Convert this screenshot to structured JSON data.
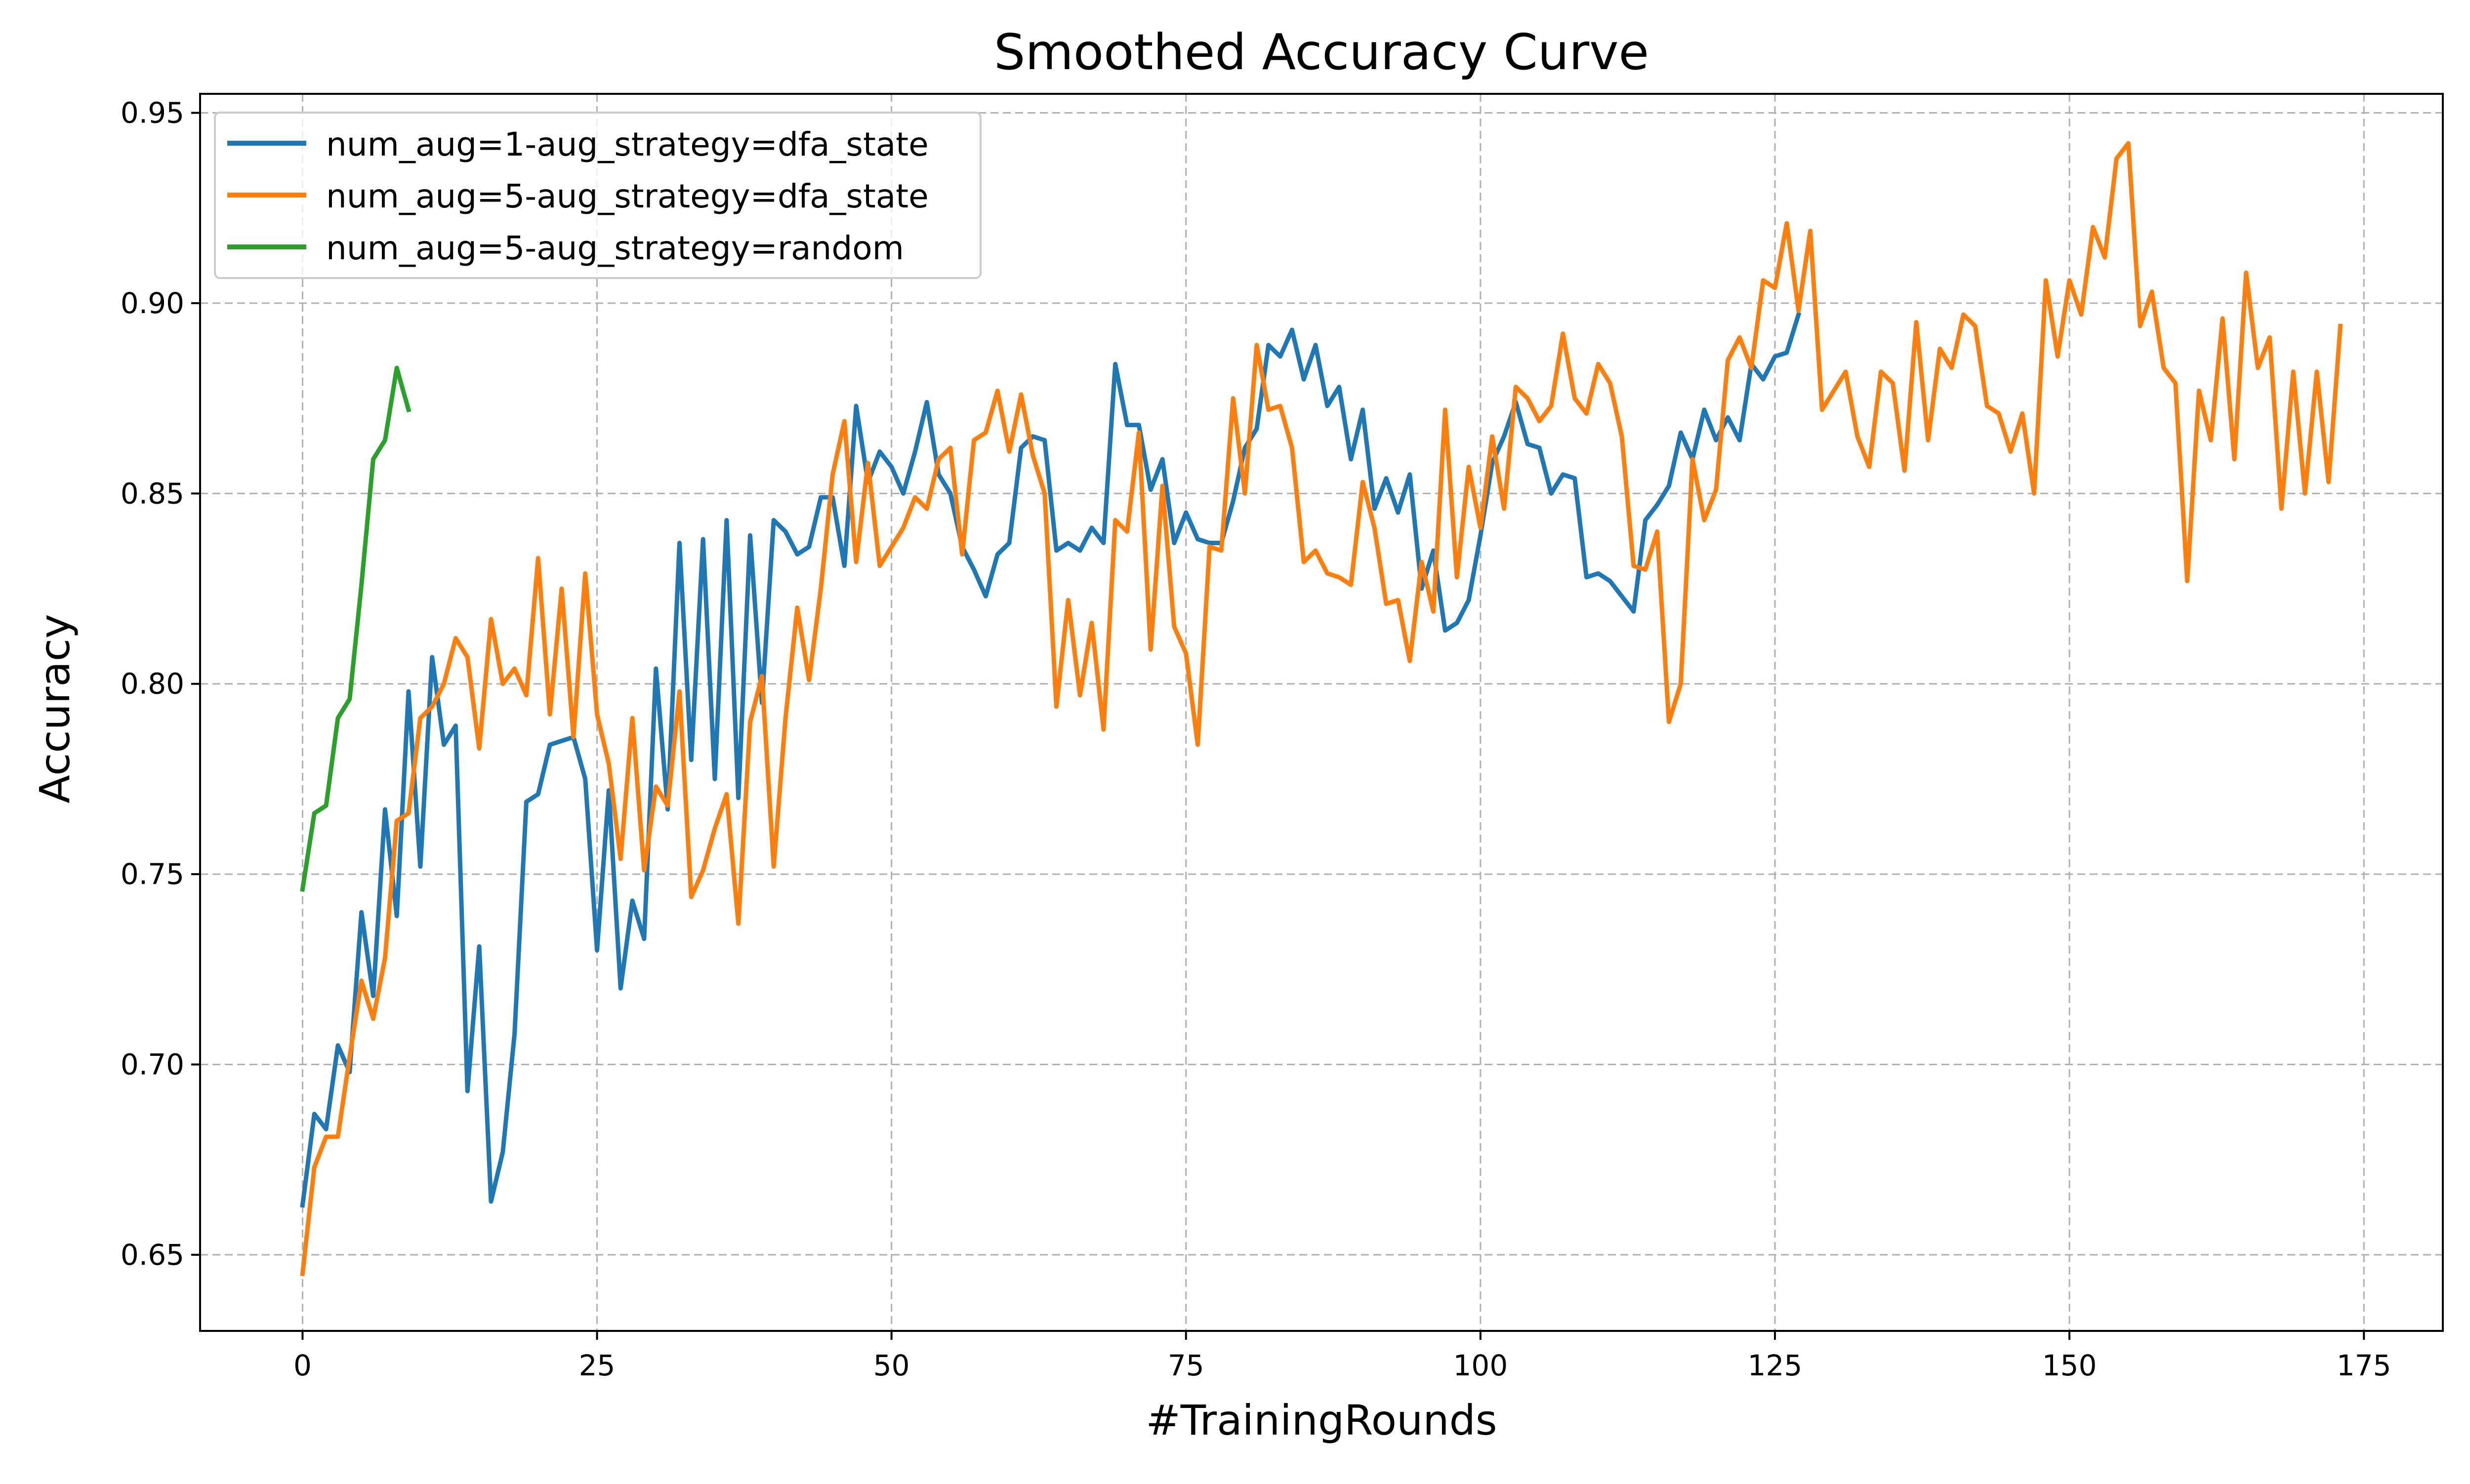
{
  "chart_data": {
    "type": "line",
    "title": "Smoothed Accuracy Curve",
    "xlabel": "#TrainingRounds",
    "ylabel": "Accuracy",
    "xlim": [
      -8.7,
      181.7
    ],
    "ylim": [
      0.63,
      0.955
    ],
    "xticks": [
      0,
      25,
      50,
      75,
      100,
      125,
      150,
      175
    ],
    "yticks": [
      0.65,
      0.7,
      0.75,
      0.8,
      0.85,
      0.9,
      0.95
    ],
    "xtick_labels": [
      "0",
      "25",
      "50",
      "75",
      "100",
      "125",
      "150",
      "175"
    ],
    "ytick_labels": [
      "0.65",
      "0.70",
      "0.75",
      "0.80",
      "0.85",
      "0.90",
      "0.95"
    ],
    "grid": true,
    "legend_position": "top-left",
    "series": [
      {
        "name": "num_aug=1-aug_strategy=dfa_state",
        "color": "#1f77b4",
        "x_start": 0,
        "values": [
          0.663,
          0.687,
          0.683,
          0.705,
          0.698,
          0.74,
          0.718,
          0.767,
          0.739,
          0.798,
          0.752,
          0.807,
          0.784,
          0.789,
          0.693,
          0.731,
          0.664,
          0.677,
          0.708,
          0.769,
          0.771,
          0.784,
          0.785,
          0.786,
          0.775,
          0.73,
          0.772,
          0.72,
          0.743,
          0.733,
          0.804,
          0.767,
          0.837,
          0.78,
          0.838,
          0.775,
          0.843,
          0.77,
          0.839,
          0.795,
          0.843,
          0.84,
          0.834,
          0.836,
          0.849,
          0.849,
          0.831,
          0.873,
          0.853,
          0.861,
          0.857,
          0.85,
          0.861,
          0.874,
          0.855,
          0.85,
          0.836,
          0.83,
          0.823,
          0.834,
          0.837,
          0.862,
          0.865,
          0.864,
          0.835,
          0.837,
          0.835,
          0.841,
          0.837,
          0.884,
          0.868,
          0.868,
          0.851,
          0.859,
          0.837,
          0.845,
          0.838,
          0.837,
          0.837,
          0.848,
          0.862,
          0.867,
          0.889,
          0.886,
          0.893,
          0.88,
          0.889,
          0.873,
          0.878,
          0.859,
          0.872,
          0.846,
          0.854,
          0.845,
          0.855,
          0.825,
          0.835,
          0.814,
          0.816,
          0.822,
          0.839,
          0.858,
          0.865,
          0.874,
          0.863,
          0.862,
          0.85,
          0.855,
          0.854,
          0.828,
          0.829,
          0.827,
          0.823,
          0.819,
          0.843,
          0.847,
          0.852,
          0.866,
          0.859,
          0.872,
          0.864,
          0.87,
          0.864,
          0.884,
          0.88,
          0.886,
          0.887,
          0.897
        ]
      },
      {
        "name": "num_aug=5-aug_strategy=dfa_state",
        "color": "#ff7f0e",
        "x_start": 0,
        "values": [
          0.645,
          0.673,
          0.681,
          0.681,
          0.702,
          0.722,
          0.712,
          0.728,
          0.764,
          0.766,
          0.791,
          0.794,
          0.8,
          0.812,
          0.807,
          0.783,
          0.817,
          0.8,
          0.804,
          0.797,
          0.833,
          0.792,
          0.825,
          0.786,
          0.829,
          0.792,
          0.779,
          0.754,
          0.791,
          0.751,
          0.773,
          0.768,
          0.798,
          0.744,
          0.751,
          0.762,
          0.771,
          0.737,
          0.79,
          0.802,
          0.752,
          0.791,
          0.82,
          0.801,
          0.825,
          0.855,
          0.869,
          0.832,
          0.858,
          0.831,
          0.836,
          0.841,
          0.849,
          0.846,
          0.859,
          0.862,
          0.834,
          0.864,
          0.866,
          0.877,
          0.861,
          0.876,
          0.86,
          0.85,
          0.794,
          0.822,
          0.797,
          0.816,
          0.788,
          0.843,
          0.84,
          0.866,
          0.809,
          0.852,
          0.815,
          0.808,
          0.784,
          0.836,
          0.835,
          0.875,
          0.85,
          0.889,
          0.872,
          0.873,
          0.862,
          0.832,
          0.835,
          0.829,
          0.828,
          0.826,
          0.853,
          0.841,
          0.821,
          0.822,
          0.806,
          0.832,
          0.819,
          0.872,
          0.828,
          0.857,
          0.841,
          0.865,
          0.846,
          0.878,
          0.875,
          0.869,
          0.873,
          0.892,
          0.875,
          0.871,
          0.884,
          0.879,
          0.865,
          0.831,
          0.83,
          0.84,
          0.79,
          0.8,
          0.859,
          0.843,
          0.851,
          0.885,
          0.891,
          0.883,
          0.906,
          0.904,
          0.921,
          0.898,
          0.919,
          0.872,
          0.877,
          0.882,
          0.865,
          0.857,
          0.882,
          0.879,
          0.856,
          0.895,
          0.864,
          0.888,
          0.883,
          0.897,
          0.894,
          0.873,
          0.871,
          0.861,
          0.871,
          0.85,
          0.906,
          0.886,
          0.906,
          0.897,
          0.92,
          0.912,
          0.938,
          0.942,
          0.894,
          0.903,
          0.883,
          0.879,
          0.827,
          0.877,
          0.864,
          0.896,
          0.859,
          0.908,
          0.883,
          0.891,
          0.846,
          0.882,
          0.85,
          0.882,
          0.853,
          0.894
        ]
      },
      {
        "name": "num_aug=5-aug_strategy=random",
        "color": "#2ca02c",
        "x_start": 0,
        "values": [
          0.746,
          0.766,
          0.768,
          0.791,
          0.796,
          0.826,
          0.859,
          0.864,
          0.883,
          0.872
        ]
      }
    ]
  }
}
